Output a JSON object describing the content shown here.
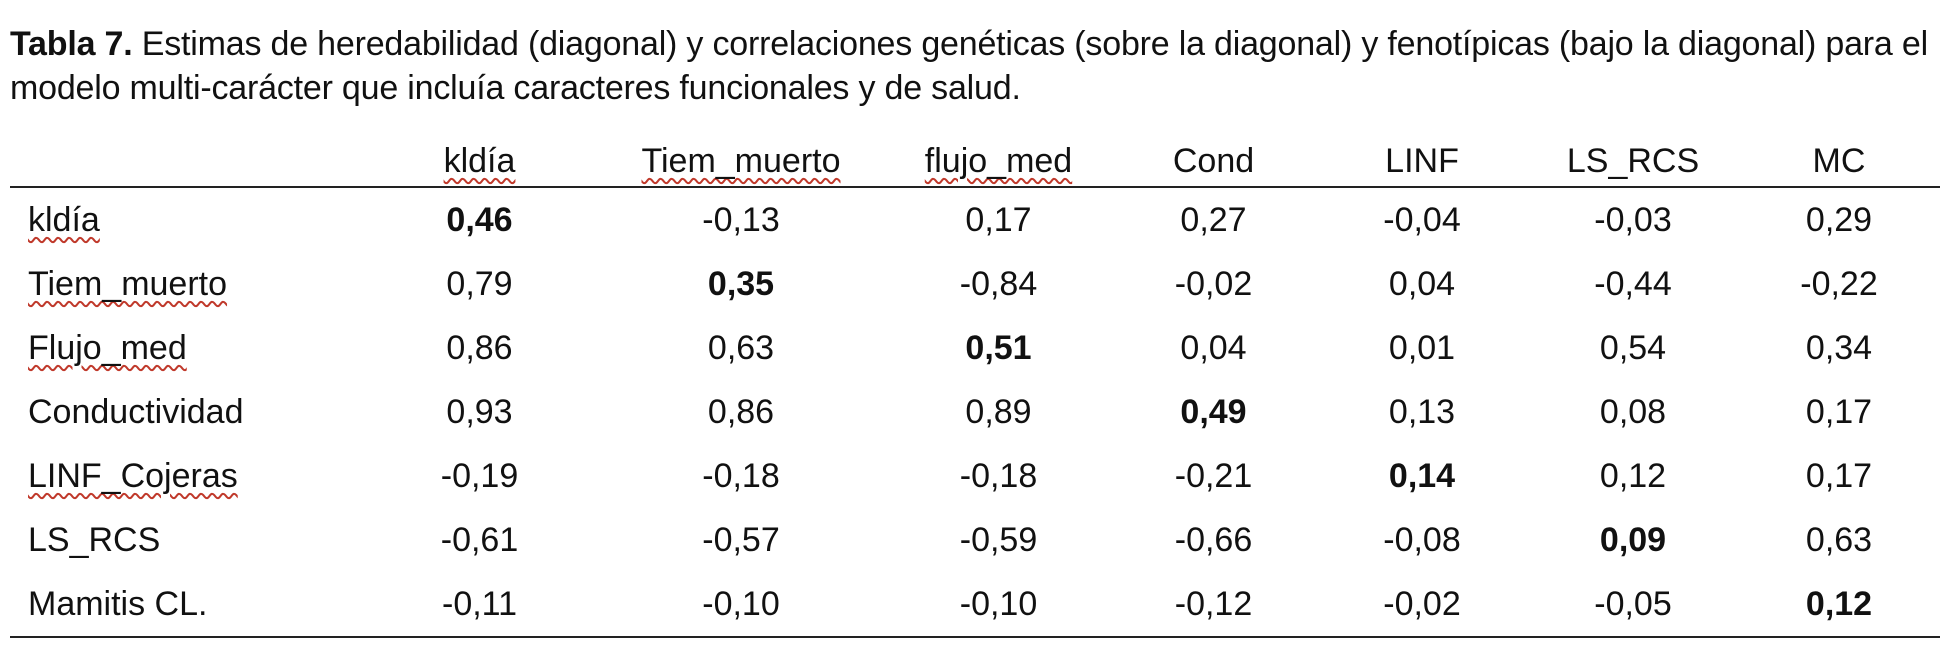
{
  "caption": {
    "title": "Tabla 7.",
    "text": " Estimas de heredabilidad (diagonal) y correlaciones genéticas (sobre la diagonal) y fenotípicas (bajo la diagonal) para el modelo multi-carácter que incluía caracteres funcionales y de salud."
  },
  "table": {
    "columns": [
      "kldía",
      "Tiem_muerto",
      "flujo_med",
      "Cond",
      "LINF",
      "LS_RCS",
      "MC"
    ],
    "rows": [
      {
        "label": "kldía",
        "values": [
          "0,46",
          "-0,13",
          "0,17",
          "0,27",
          "-0,04",
          "-0,03",
          "0,29"
        ]
      },
      {
        "label": "Tiem_muerto",
        "values": [
          "0,79",
          "0,35",
          "-0,84",
          "-0,02",
          "0,04",
          "-0,44",
          "-0,22"
        ]
      },
      {
        "label": "Flujo_med",
        "values": [
          "0,86",
          "0,63",
          "0,51",
          "0,04",
          "0,01",
          "0,54",
          "0,34"
        ]
      },
      {
        "label": "Conductividad",
        "values": [
          "0,93",
          "0,86",
          "0,89",
          "0,49",
          "0,13",
          "0,08",
          "0,17"
        ]
      },
      {
        "label": "LINF_Cojeras",
        "values": [
          "-0,19",
          "-0,18",
          "-0,18",
          "-0,21",
          "0,14",
          "0,12",
          "0,17"
        ]
      },
      {
        "label": "LS_RCS",
        "values": [
          "-0,61",
          "-0,57",
          "-0,59",
          "-0,66",
          "-0,08",
          "0,09",
          "0,63"
        ]
      },
      {
        "label": "Mamitis CL.",
        "values": [
          "-0,11",
          "-0,10",
          "-0,10",
          "-0,12",
          "-0,02",
          "-0,05",
          "0,12"
        ]
      }
    ]
  }
}
